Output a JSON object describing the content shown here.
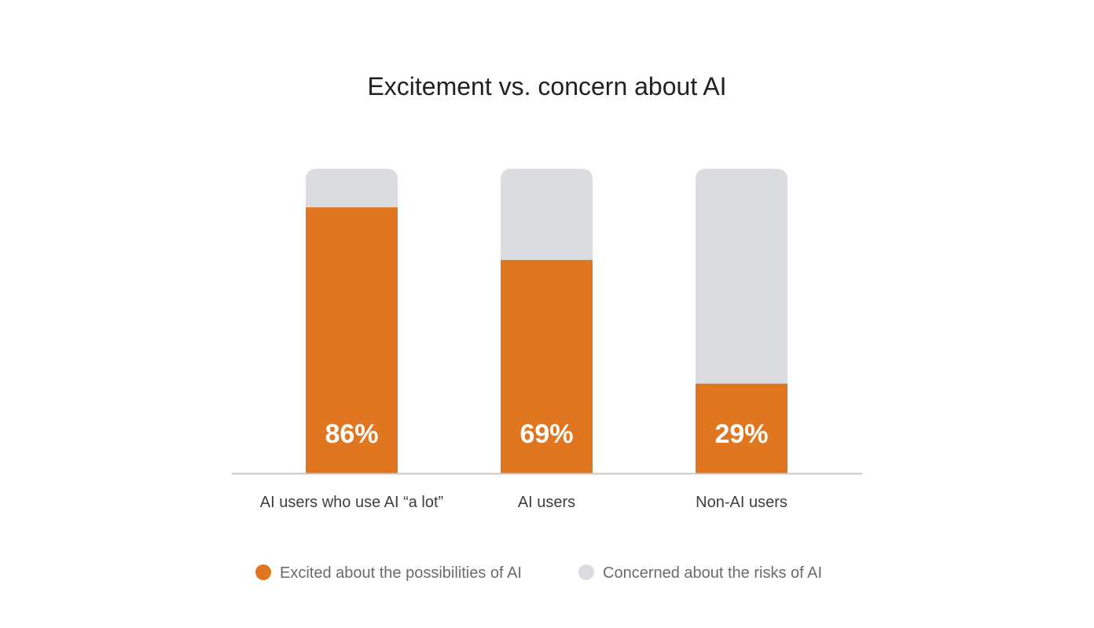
{
  "chart_data": {
    "type": "bar",
    "stacked": true,
    "title": "Excitement vs. concern about AI",
    "categories": [
      "AI users who use AI “a lot”",
      "AI users",
      "Non-AI users"
    ],
    "series": [
      {
        "name": "Excited about the possibilities of AI",
        "values": [
          86,
          69,
          29
        ],
        "color": "#E07620"
      },
      {
        "name": "Concerned about the risks of AI",
        "values": [
          14,
          31,
          71
        ],
        "color": "#DADCE0"
      }
    ],
    "data_labels": [
      "86%",
      "69%",
      "29%"
    ],
    "ylim": [
      0,
      100
    ],
    "grid": false,
    "legend": "bottom",
    "xlabel": "",
    "ylabel": ""
  }
}
